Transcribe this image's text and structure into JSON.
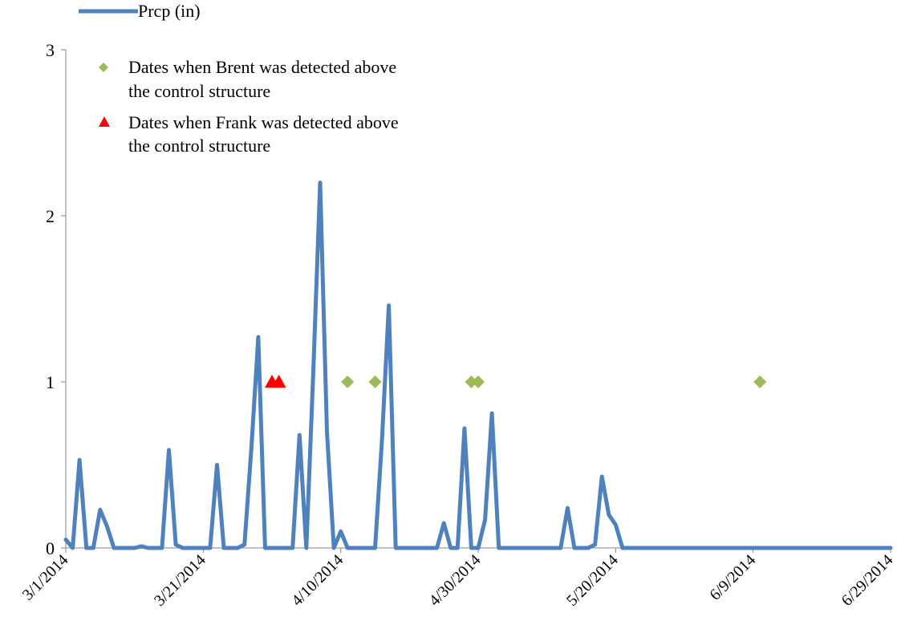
{
  "chart_data": {
    "type": "line",
    "title": "",
    "xlabel": "",
    "ylabel": "",
    "ylim": [
      0,
      3
    ],
    "yticks": [
      0,
      1,
      2,
      3
    ],
    "x_tick_labels": [
      "3/1/2014",
      "3/21/2014",
      "4/10/2014",
      "4/30/2014",
      "5/20/2014",
      "6/9/2014",
      "6/29/2014"
    ],
    "x_tick_days": [
      0,
      20,
      40,
      60,
      80,
      100,
      120
    ],
    "grid": false,
    "legend_position": "top-left",
    "series": [
      {
        "name": "Prcp (in)",
        "color": "#4F81BD",
        "values": [
          0.05,
          0.0,
          0.53,
          0.0,
          0.0,
          0.23,
          0.13,
          0.0,
          0.0,
          0.0,
          0.0,
          0.01,
          0.0,
          0.0,
          0.0,
          0.59,
          0.02,
          0.0,
          0.0,
          0.0,
          0.0,
          0.0,
          0.5,
          0.0,
          0.0,
          0.0,
          0.02,
          0.6,
          1.27,
          0.0,
          0.0,
          0.0,
          0.0,
          0.0,
          0.68,
          0.0,
          1.05,
          2.2,
          0.7,
          0.0,
          0.1,
          0.0,
          0.0,
          0.0,
          0.0,
          0.0,
          0.65,
          1.46,
          0.0,
          0.0,
          0.0,
          0.0,
          0.0,
          0.0,
          0.0,
          0.15,
          0.0,
          0.0,
          0.72,
          0.0,
          0.0,
          0.17,
          0.81,
          0.0,
          0.0,
          0.0,
          0.0,
          0.0,
          0.0,
          0.0,
          0.0,
          0.0,
          0.0,
          0.24,
          0.0,
          0.0,
          0.0,
          0.02,
          0.43,
          0.2,
          0.14,
          0.0,
          0.0,
          0.0,
          0.0,
          0.0,
          0.0,
          0.0,
          0.0,
          0.0,
          0.0,
          0.0,
          0.0,
          0.0,
          0.0,
          0.0,
          0.0,
          0.0,
          0.0,
          0.0,
          0.0,
          0.0,
          0.0,
          0.0,
          0.0,
          0.0,
          0.0,
          0.0,
          0.0,
          0.0,
          0.0,
          0.0,
          0.0,
          0.0,
          0.0,
          0.0,
          0.0,
          0.0,
          0.0,
          0.0,
          0.0
        ]
      }
    ],
    "series_note": "",
    "markers": [
      {
        "name": "Dates when Brent was detected above the control structure",
        "legend_lines": [
          "Dates when Brent was detected above",
          "the control structure"
        ],
        "shape": "diamond",
        "color": "#9BBB59",
        "y": 1,
        "days": [
          41,
          45,
          59,
          60,
          101
        ]
      },
      {
        "name": "Dates when Frank was detected above the control structure",
        "legend_lines": [
          "Dates when Frank was detected above",
          "the control structure"
        ],
        "shape": "triangle",
        "color": "#FF0000",
        "y": 1,
        "days": [
          30,
          31
        ]
      }
    ]
  }
}
